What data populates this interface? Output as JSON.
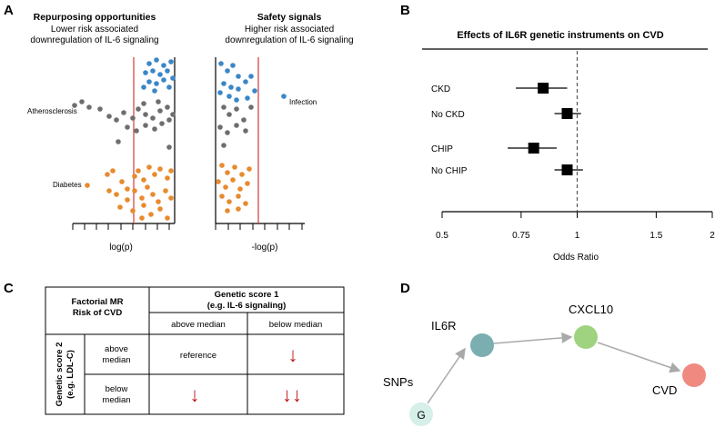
{
  "panel_labels": {
    "a": "A",
    "b": "B",
    "c": "C",
    "d": "D"
  },
  "panel_a": {
    "left_title": "Repurposing opportunities",
    "left_subtitle_1": "Lower risk associated",
    "left_subtitle_2": "downregulation of IL-6 signaling",
    "right_title": "Safety signals",
    "right_subtitle_1": "Higher risk associated",
    "right_subtitle_2": "downregulation of IL-6 signaling",
    "row_label_atherosclerosis": "Atherosclerosis",
    "row_label_diabetes": "Diabetes",
    "point_label_infection": "Infection",
    "left_xlabel": "log(p)",
    "right_xlabel": "-log(p)",
    "colors": {
      "blue": "#3a87c8",
      "grey": "#6e6e6e",
      "orange": "#e88a2e",
      "threshold": "#d63a3a"
    }
  },
  "chart_data": {
    "type": "forest",
    "title": "Effects of IL6R genetic instruments on CVD",
    "xlabel": "Odds Ratio",
    "tick_labels": [
      "0.5",
      "0.75",
      "1",
      "1.5",
      "2"
    ],
    "x_scale": "log",
    "xlim": [
      0.5,
      2
    ],
    "reference_line": 1,
    "rows": [
      {
        "label": "CKD",
        "or": 0.84,
        "lo": 0.73,
        "hi": 0.95
      },
      {
        "label": "No CKD",
        "or": 0.95,
        "lo": 0.89,
        "hi": 1.02
      },
      {
        "label": "CHIP",
        "or": 0.8,
        "lo": 0.7,
        "hi": 0.9
      },
      {
        "label": "No CHIP",
        "or": 0.95,
        "lo": 0.89,
        "hi": 1.03
      }
    ]
  },
  "panel_c": {
    "corner_line1": "Factorial MR",
    "corner_line2": "Risk of CVD",
    "col_header_line1": "Genetic score 1",
    "col_header_line2": "(e.g. IL-6 signaling)",
    "col_above": "above median",
    "col_below": "below median",
    "row_header_line1": "Genetic score 2",
    "row_header_line2": "(e.g. LDL-C)",
    "row_above_line1": "above",
    "row_above_line2": "median",
    "row_below_line1": "below",
    "row_below_line2": "median",
    "cell_aa": "reference",
    "cell_ab": "↓",
    "cell_ba": "↓",
    "cell_bb": "↓↓",
    "arrow_color": "#c0141b"
  },
  "panel_d": {
    "nodes": [
      {
        "label": "G",
        "caption": "SNPs",
        "color": "#d6efe9"
      },
      {
        "label": "",
        "caption": "IL6R",
        "color": "#7aaeb0"
      },
      {
        "label": "",
        "caption": "CXCL10",
        "color": "#9fd37f"
      },
      {
        "label": "",
        "caption": "CVD",
        "color": "#f08a80"
      }
    ]
  }
}
